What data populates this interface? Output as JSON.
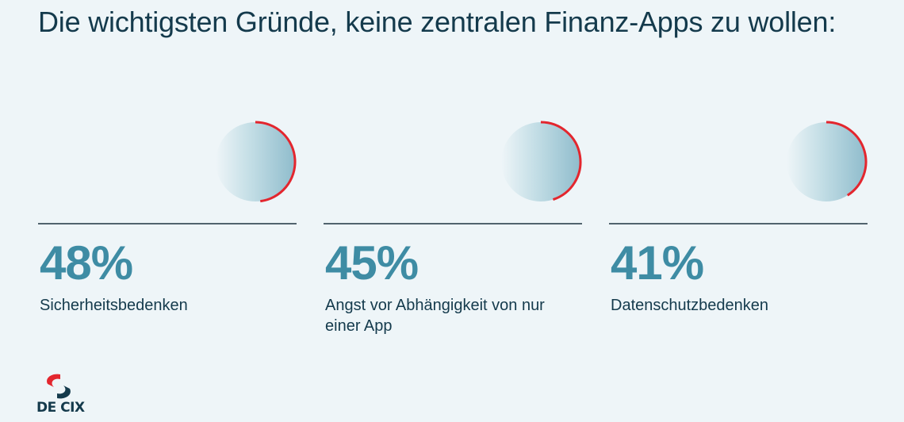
{
  "title": "Die wichtigsten Gründe, keine zentralen Finanz-Apps zu wollen:",
  "colors": {
    "background": "#eef5f8",
    "text": "#143a4c",
    "value": "#3e8ca4",
    "accent": "#e3262e",
    "divider": "#51636e"
  },
  "chart_data": {
    "type": "pie",
    "unit": "%",
    "categories": [
      "Sicherheitsbedenken",
      "Angst vor Abhängigkeit von nur einer App",
      "Datenschutzbedenken"
    ],
    "values": [
      48,
      45,
      41
    ]
  },
  "stats": [
    {
      "value": "48%",
      "label": "Sicherheitsbedenken"
    },
    {
      "value": "45%",
      "label": "Angst vor Abhängigkeit von nur einer App"
    },
    {
      "value": "41%",
      "label": "Datenschutzbedenken"
    }
  ],
  "logo": {
    "text": "DE CIX"
  }
}
